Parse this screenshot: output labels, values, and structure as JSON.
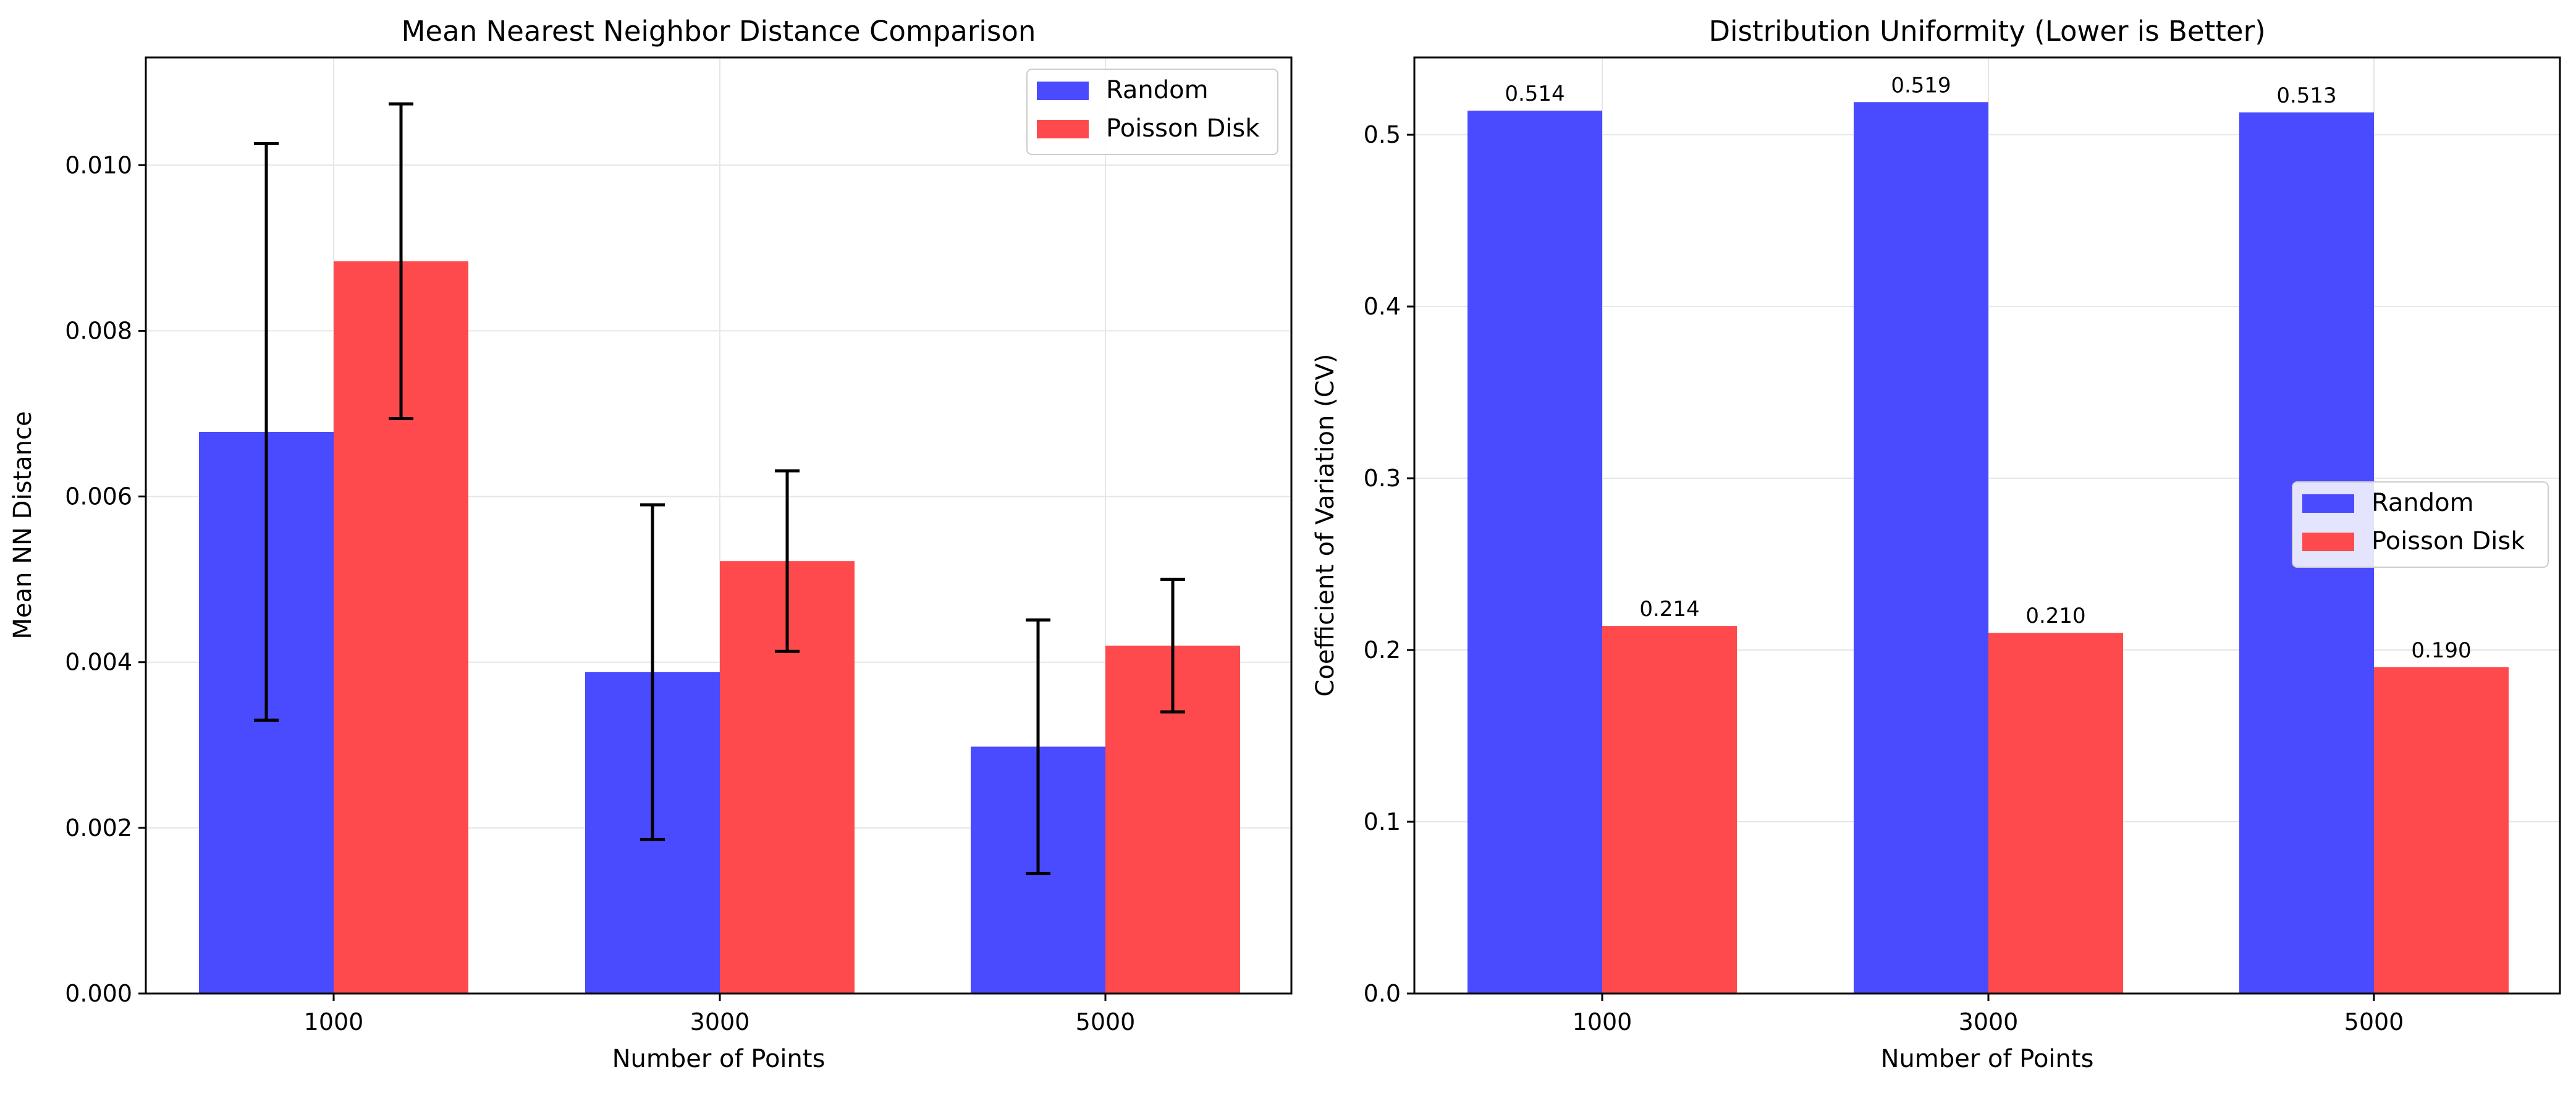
{
  "chart_data": [
    {
      "type": "bar",
      "title": "Mean Nearest Neighbor Distance Comparison",
      "xlabel": "Number of Points",
      "ylabel": "Mean NN Distance",
      "categories": [
        "1000",
        "3000",
        "5000"
      ],
      "ylim": [
        0,
        0.0113
      ],
      "yticks": [
        0.0,
        0.002,
        0.004,
        0.006,
        0.008,
        0.01
      ],
      "ytick_labels": [
        "0.000",
        "0.002",
        "0.004",
        "0.006",
        "0.008",
        "0.010"
      ],
      "grid": true,
      "legend_position": "top-right",
      "series": [
        {
          "name": "Random",
          "color": "#4a4aff",
          "values": [
            0.00678,
            0.00388,
            0.00298
          ],
          "errors": [
            0.00348,
            0.00202,
            0.00153
          ]
        },
        {
          "name": "Poisson Disk",
          "color": "#ff4a4d",
          "values": [
            0.00884,
            0.00522,
            0.0042
          ],
          "errors": [
            0.0019,
            0.00109,
            0.0008
          ]
        }
      ]
    },
    {
      "type": "bar",
      "title": "Distribution Uniformity (Lower is Better)",
      "xlabel": "Number of Points",
      "ylabel": "Coefficient of Variation (CV)",
      "categories": [
        "1000",
        "3000",
        "5000"
      ],
      "ylim": [
        0,
        0.545
      ],
      "yticks": [
        0.0,
        0.1,
        0.2,
        0.3,
        0.4,
        0.5
      ],
      "ytick_labels": [
        "0.0",
        "0.1",
        "0.2",
        "0.3",
        "0.4",
        "0.5"
      ],
      "grid": true,
      "legend_position": "center-right",
      "series": [
        {
          "name": "Random",
          "color": "#4a4aff",
          "values": [
            0.514,
            0.519,
            0.513
          ],
          "labels": [
            "0.514",
            "0.519",
            "0.513"
          ]
        },
        {
          "name": "Poisson Disk",
          "color": "#ff4a4d",
          "values": [
            0.214,
            0.21,
            0.19
          ],
          "labels": [
            "0.214",
            "0.210",
            "0.190"
          ]
        }
      ]
    }
  ]
}
